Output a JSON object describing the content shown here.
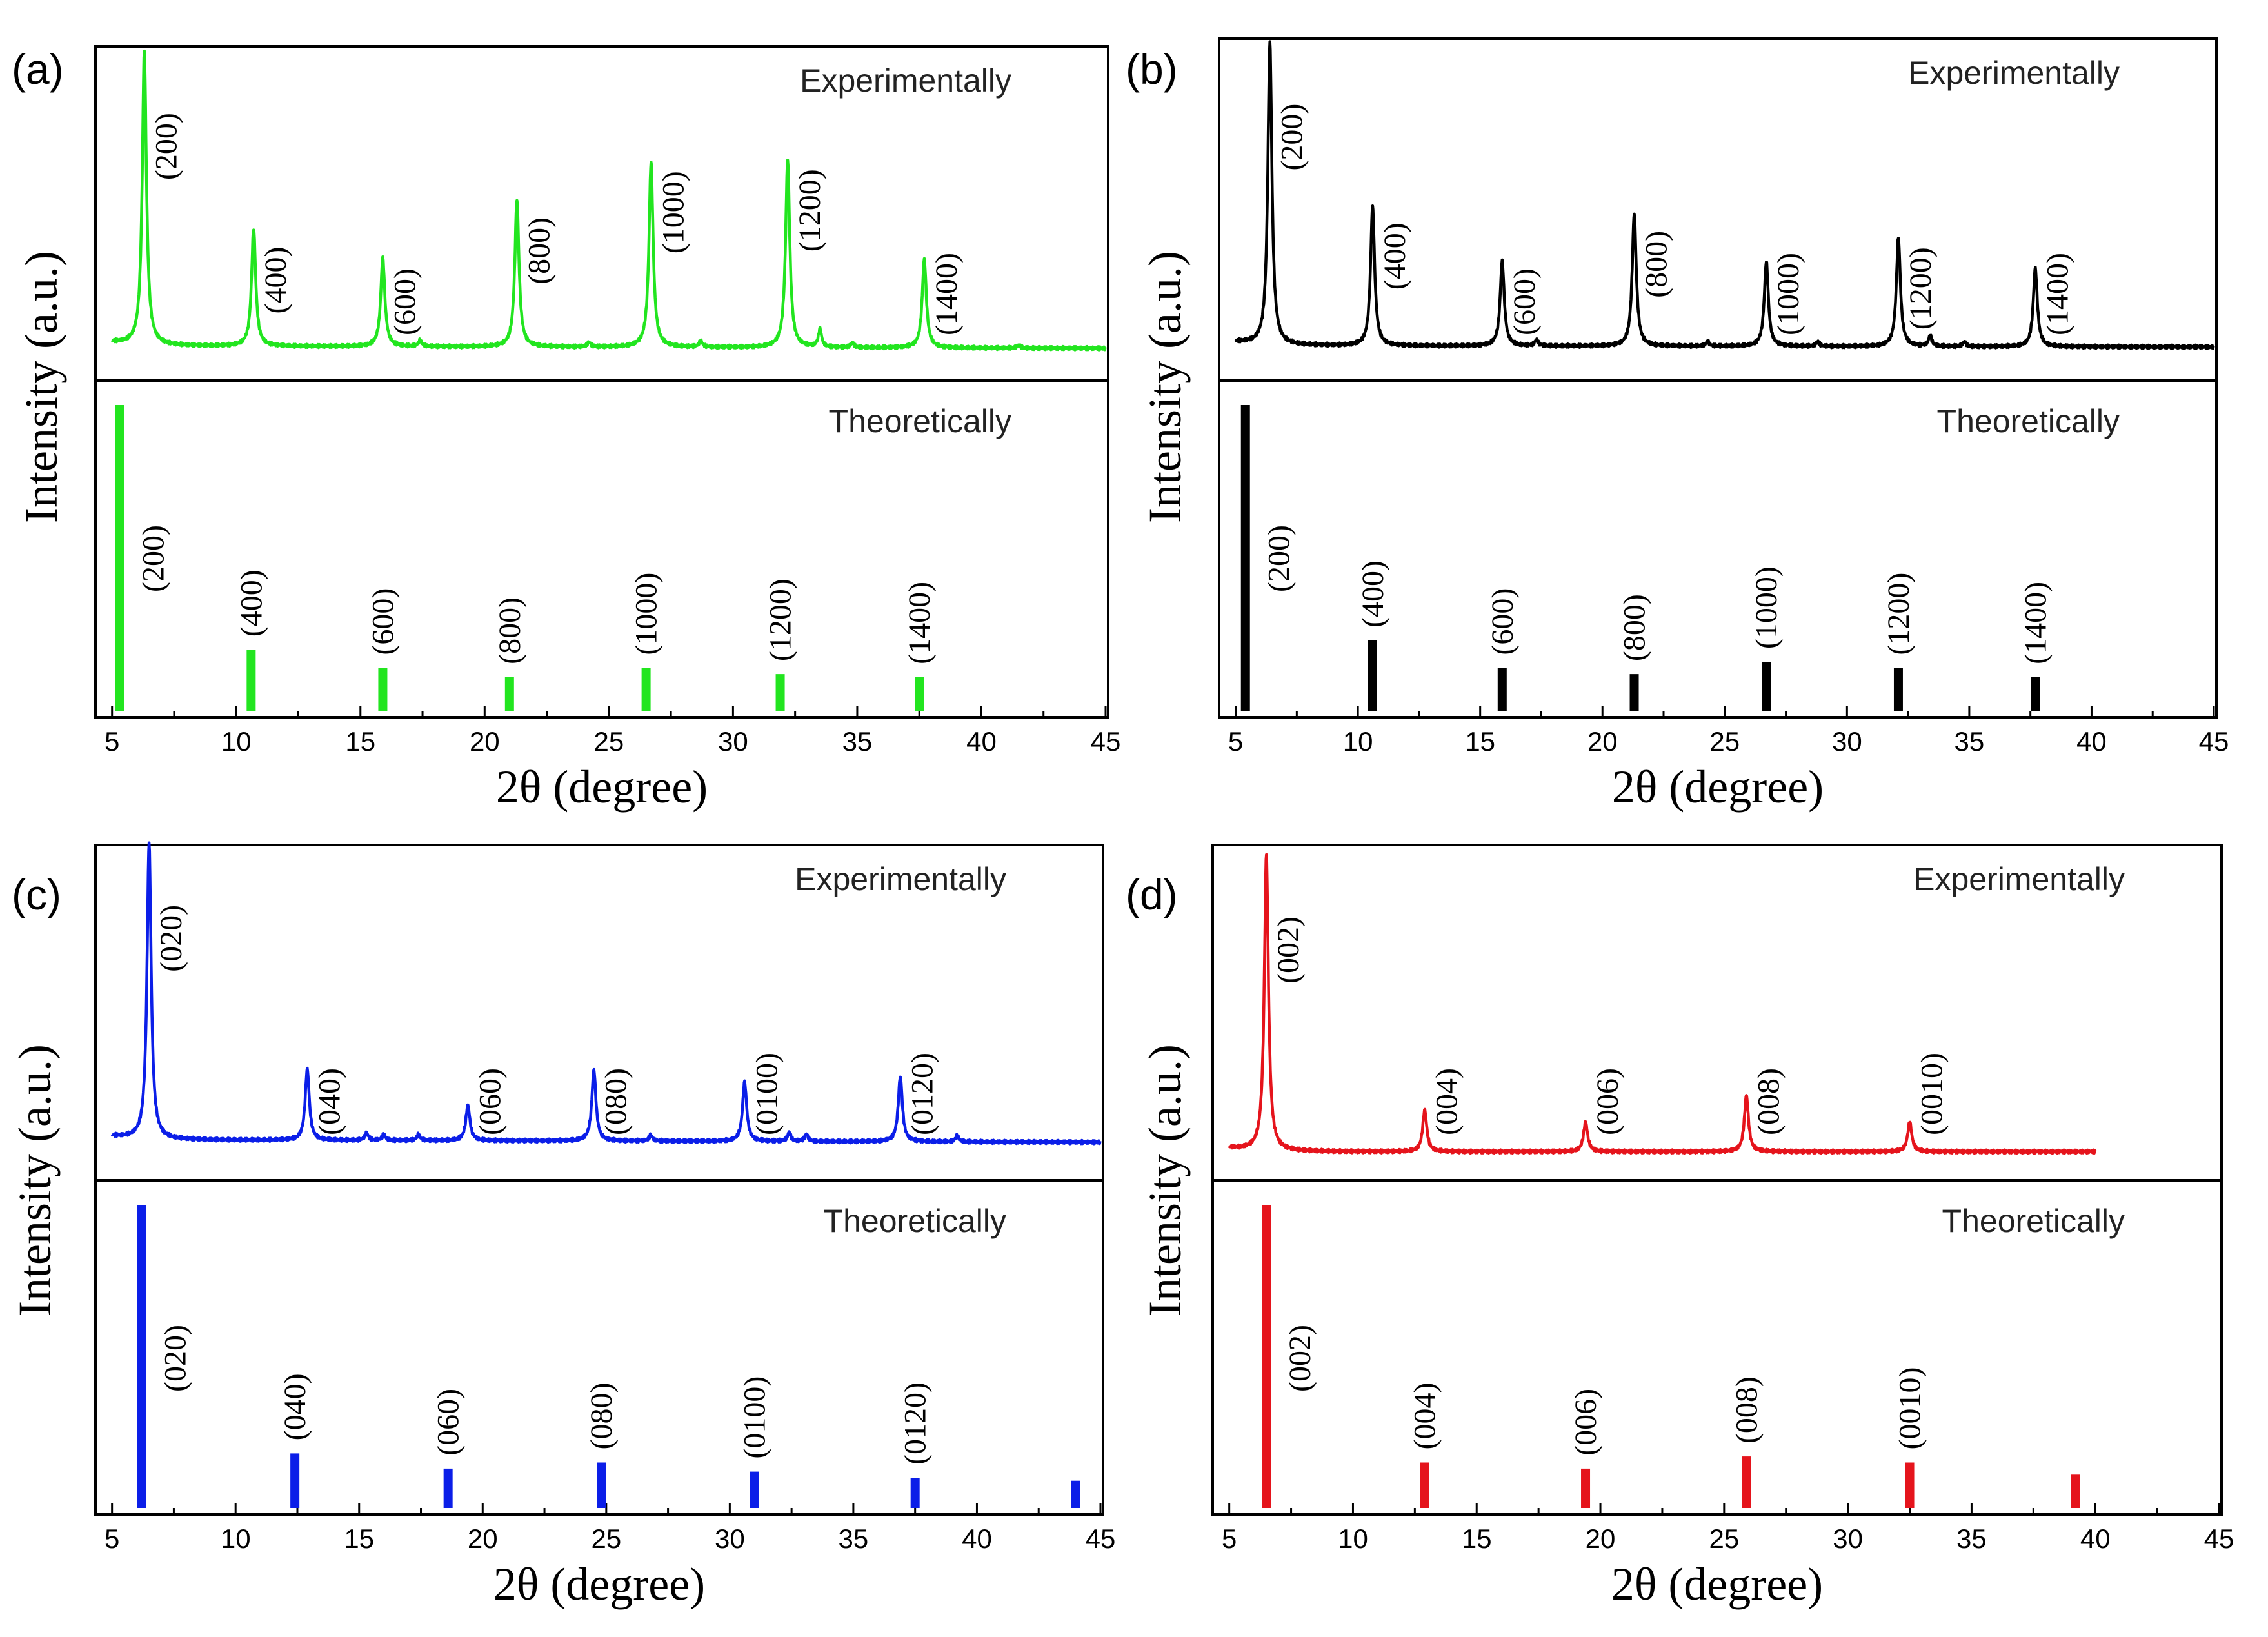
{
  "figure": {
    "xlabel": "2θ (degree)",
    "ylabel": "Intensity (a.u.)",
    "top_label": "Experimentally",
    "bottom_label": "Theoretically"
  },
  "chart_data": [
    {
      "panel": "(a)",
      "type": "line",
      "color": "#22e51f",
      "xlim": [
        4.8,
        45
      ],
      "xticks": [
        5,
        10,
        15,
        20,
        25,
        30,
        35,
        40,
        45
      ],
      "xlabel": "2θ (degree)",
      "ylabel": "Intensity (a.u.)",
      "experimental": {
        "name": "Experimentally",
        "baseline": 3,
        "slope": -0.02,
        "peaks": [
          {
            "x": 6.3,
            "h": 100,
            "hkl": "(200)"
          },
          {
            "x": 10.7,
            "h": 40,
            "hkl": "(400)"
          },
          {
            "x": 15.9,
            "h": 30,
            "hkl": "(600)"
          },
          {
            "x": 21.3,
            "h": 50,
            "hkl": "(800)"
          },
          {
            "x": 26.7,
            "h": 63,
            "hkl": "(1000)"
          },
          {
            "x": 32.2,
            "h": 64,
            "hkl": "(1200)"
          },
          {
            "x": 37.7,
            "h": 30,
            "hkl": "(1400)"
          }
        ],
        "minor_peaks": [
          {
            "x": 17.4,
            "h": 2
          },
          {
            "x": 24.2,
            "h": 1.5
          },
          {
            "x": 28.7,
            "h": 2
          },
          {
            "x": 33.5,
            "h": 6
          },
          {
            "x": 34.8,
            "h": 1.5
          },
          {
            "x": 41.5,
            "h": 1
          }
        ]
      },
      "theoretical": {
        "name": "Theoretically",
        "peaks": [
          {
            "x": 5.3,
            "h": 100,
            "hkl": "(200)"
          },
          {
            "x": 10.6,
            "h": 20,
            "hkl": "(400)"
          },
          {
            "x": 15.9,
            "h": 14,
            "hkl": "(600)"
          },
          {
            "x": 21.0,
            "h": 11,
            "hkl": "(800)"
          },
          {
            "x": 26.5,
            "h": 14,
            "hkl": "(1000)"
          },
          {
            "x": 31.9,
            "h": 12,
            "hkl": "(1200)"
          },
          {
            "x": 37.5,
            "h": 11,
            "hkl": "(1400)"
          }
        ]
      }
    },
    {
      "panel": "(b)",
      "type": "line",
      "color": "#000000",
      "xlim": [
        4.8,
        45
      ],
      "xticks": [
        5,
        10,
        15,
        20,
        25,
        30,
        35,
        40,
        45
      ],
      "xlabel": "2θ (degree)",
      "ylabel": "Intensity (a.u.)",
      "experimental": {
        "name": "Experimentally",
        "baseline": 3,
        "slope": -0.01,
        "peaks": [
          {
            "x": 6.4,
            "h": 100,
            "hkl": "(200)"
          },
          {
            "x": 10.6,
            "h": 46,
            "hkl": "(400)"
          },
          {
            "x": 15.9,
            "h": 28,
            "hkl": "(600)"
          },
          {
            "x": 21.3,
            "h": 44,
            "hkl": "(800)"
          },
          {
            "x": 26.7,
            "h": 28,
            "hkl": "(1000)"
          },
          {
            "x": 32.1,
            "h": 36,
            "hkl": "(1200)"
          },
          {
            "x": 37.7,
            "h": 26,
            "hkl": "(1400)"
          }
        ],
        "minor_peaks": [
          {
            "x": 17.3,
            "h": 2
          },
          {
            "x": 24.3,
            "h": 1.5
          },
          {
            "x": 28.8,
            "h": 1.5
          },
          {
            "x": 33.4,
            "h": 3.5
          },
          {
            "x": 34.8,
            "h": 1.5
          }
        ]
      },
      "theoretical": {
        "name": "Theoretically",
        "peaks": [
          {
            "x": 5.4,
            "h": 100,
            "hkl": "(200)"
          },
          {
            "x": 10.6,
            "h": 23,
            "hkl": "(400)"
          },
          {
            "x": 15.9,
            "h": 14,
            "hkl": "(600)"
          },
          {
            "x": 21.3,
            "h": 12,
            "hkl": "(800)"
          },
          {
            "x": 26.7,
            "h": 16,
            "hkl": "(1000)"
          },
          {
            "x": 32.1,
            "h": 14,
            "hkl": "(1200)"
          },
          {
            "x": 37.7,
            "h": 11,
            "hkl": "(1400)"
          }
        ]
      }
    },
    {
      "panel": "(c)",
      "type": "line",
      "color": "#0b1ee8",
      "xlim": [
        4.8,
        45
      ],
      "xticks": [
        5,
        10,
        15,
        20,
        25,
        30,
        35,
        40,
        45
      ],
      "xlabel": "2θ (degree)",
      "ylabel": "Intensity (a.u.)",
      "experimental": {
        "name": "Experimentally",
        "baseline": 5,
        "slope": -0.02,
        "peaks": [
          {
            "x": 6.5,
            "h": 100,
            "hkl": "(020)"
          },
          {
            "x": 12.9,
            "h": 24,
            "hkl": "(040)"
          },
          {
            "x": 19.4,
            "h": 12,
            "hkl": "(060)"
          },
          {
            "x": 24.5,
            "h": 24,
            "hkl": "(080)"
          },
          {
            "x": 30.6,
            "h": 20,
            "hkl": "(0100)"
          },
          {
            "x": 36.9,
            "h": 22,
            "hkl": "(0120)"
          }
        ],
        "minor_peaks": [
          {
            "x": 15.3,
            "h": 2.5
          },
          {
            "x": 16.0,
            "h": 2
          },
          {
            "x": 17.4,
            "h": 2
          },
          {
            "x": 26.8,
            "h": 2
          },
          {
            "x": 32.4,
            "h": 3
          },
          {
            "x": 33.1,
            "h": 2.5
          },
          {
            "x": 39.2,
            "h": 2
          }
        ]
      },
      "theoretical": {
        "name": "Theoretically",
        "peaks": [
          {
            "x": 6.2,
            "h": 100,
            "hkl": "(020)"
          },
          {
            "x": 12.4,
            "h": 18,
            "hkl": "(040)"
          },
          {
            "x": 18.6,
            "h": 13,
            "hkl": "(060)"
          },
          {
            "x": 24.8,
            "h": 15,
            "hkl": "(080)"
          },
          {
            "x": 31.0,
            "h": 12,
            "hkl": "(0100)"
          },
          {
            "x": 37.5,
            "h": 10,
            "hkl": "(0120)"
          },
          {
            "x": 44.0,
            "h": 9,
            "hkl": ""
          }
        ]
      }
    },
    {
      "panel": "(d)",
      "type": "line",
      "color": "#e5141c",
      "xlim": [
        4.8,
        45
      ],
      "xticks": [
        5,
        10,
        15,
        20,
        25,
        30,
        35,
        40,
        45
      ],
      "xlabel": "2θ (degree)",
      "ylabel": "Intensity (a.u.)",
      "experimental": {
        "name": "Experimentally",
        "baseline": 1,
        "slope": 0,
        "x_end": 40,
        "peaks": [
          {
            "x": 6.5,
            "h": 100,
            "hkl": "(002)"
          },
          {
            "x": 12.9,
            "h": 14,
            "hkl": "(004)"
          },
          {
            "x": 19.4,
            "h": 10,
            "hkl": "(006)"
          },
          {
            "x": 25.9,
            "h": 19,
            "hkl": "(008)"
          },
          {
            "x": 32.5,
            "h": 10,
            "hkl": "(0010)"
          }
        ],
        "minor_peaks": []
      },
      "theoretical": {
        "name": "Theoretically",
        "peaks": [
          {
            "x": 6.5,
            "h": 100,
            "hkl": "(002)"
          },
          {
            "x": 12.9,
            "h": 15,
            "hkl": "(004)"
          },
          {
            "x": 19.4,
            "h": 13,
            "hkl": "(006)"
          },
          {
            "x": 25.9,
            "h": 17,
            "hkl": "(008)"
          },
          {
            "x": 32.5,
            "h": 15,
            "hkl": "(0010)"
          },
          {
            "x": 39.2,
            "h": 11,
            "hkl": ""
          }
        ]
      }
    }
  ]
}
